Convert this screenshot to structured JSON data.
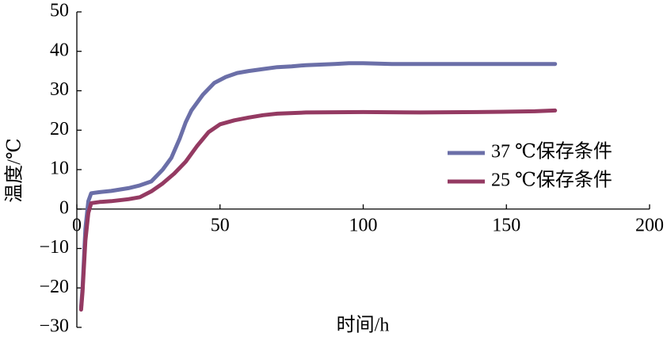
{
  "chart_data": {
    "type": "line",
    "xlabel": "时间/h",
    "ylabel": "温度/℃",
    "xlim": [
      0,
      200
    ],
    "ylim": [
      -30,
      50
    ],
    "xticks": [
      0,
      50,
      100,
      150,
      200
    ],
    "yticks": [
      {
        "value": -30,
        "label": "−30"
      },
      {
        "value": -20,
        "label": "−20"
      },
      {
        "value": -10,
        "label": "−10"
      },
      0,
      10,
      20,
      30,
      40,
      50
    ],
    "series": [
      {
        "name": "37 ℃保存条件",
        "color": "#6b6fa8",
        "x": [
          1.5,
          2,
          3,
          4,
          5,
          8,
          12,
          18,
          22,
          26,
          30,
          33,
          36,
          38,
          40,
          44,
          48,
          52,
          56,
          60,
          65,
          70,
          75,
          80,
          90,
          95,
          100,
          110,
          130,
          150,
          167
        ],
        "values": [
          -25,
          -20,
          -5,
          2,
          4,
          4.3,
          4.6,
          5.3,
          6,
          7,
          10,
          13,
          18,
          22,
          25,
          29,
          32,
          33.5,
          34.5,
          35,
          35.5,
          36,
          36.2,
          36.5,
          36.8,
          37,
          37,
          36.8,
          36.8,
          36.8,
          36.8
        ]
      },
      {
        "name": "25 ℃保存条件",
        "color": "#943a62",
        "x": [
          1.5,
          2,
          3,
          4,
          5,
          8,
          12,
          18,
          22,
          26,
          30,
          34,
          38,
          42,
          46,
          50,
          55,
          60,
          65,
          70,
          80,
          100,
          120,
          140,
          160,
          167
        ],
        "values": [
          -25.5,
          -21,
          -8,
          -1,
          1.5,
          1.8,
          2,
          2.5,
          3,
          4.5,
          6.5,
          9,
          12,
          16,
          19.5,
          21.5,
          22.5,
          23.2,
          23.8,
          24.2,
          24.5,
          24.6,
          24.5,
          24.6,
          24.8,
          25
        ]
      }
    ]
  }
}
